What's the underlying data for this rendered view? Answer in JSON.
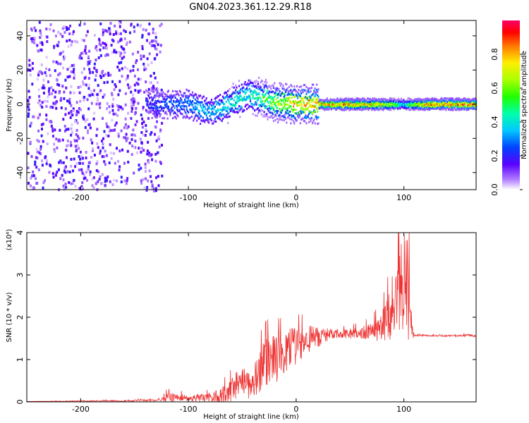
{
  "title": "GN04.2023.361.12.29.R18",
  "chart_data": [
    {
      "type": "heatmap",
      "xlabel": "Height of straight line (km)",
      "ylabel": "Frequency (Hz)",
      "xlim": [
        -250,
        167
      ],
      "ylim": [
        -50,
        49
      ],
      "xticks": [
        -200,
        -100,
        0,
        100
      ],
      "yticks": [
        -40,
        -20,
        0,
        20,
        40
      ],
      "colorbar": {
        "label": "Normalized spectral amplitude",
        "range": [
          0,
          1
        ],
        "ticks": [
          0.0,
          0.2,
          0.4,
          0.6,
          0.8
        ],
        "tick_labels": [
          "0.0",
          "0.2",
          "0.4",
          "0.6",
          "0.8"
        ]
      },
      "features": [
        {
          "region": "noise",
          "x_range": [
            -250,
            -125
          ],
          "freq_range": [
            -50,
            49
          ],
          "amplitude": [
            0.02,
            0.2
          ]
        },
        {
          "region": "ridge",
          "x": [
            -140,
            -120,
            -100,
            -90,
            -80,
            -70,
            -60,
            -50,
            -45,
            -40,
            -30,
            -20,
            -10,
            0,
            20,
            40,
            60,
            80,
            95,
            100,
            105,
            120,
            140,
            167
          ],
          "freq": [
            0,
            0,
            0,
            -3,
            -4,
            -2,
            1,
            4,
            6,
            5,
            3,
            1,
            0.5,
            0,
            0,
            0,
            0,
            0,
            0,
            0,
            0,
            0,
            0,
            0
          ],
          "amplitude": [
            0.25,
            0.3,
            0.35,
            0.4,
            0.4,
            0.45,
            0.5,
            0.5,
            0.45,
            0.55,
            0.6,
            0.7,
            0.8,
            0.9,
            0.92,
            0.92,
            0.9,
            0.85,
            0.6,
            0.4,
            0.7,
            0.95,
            0.95,
            0.95
          ]
        }
      ]
    },
    {
      "type": "line",
      "xlabel": "Height of straight line (km)",
      "ylabel": "SNR (10 * v/v)",
      "y_multiplier": "(x10⁴)",
      "xlim": [
        -250,
        167
      ],
      "ylim": [
        0,
        4
      ],
      "xticks": [
        -200,
        -100,
        0,
        100
      ],
      "yticks": [
        0,
        1,
        2,
        3,
        4
      ],
      "series": [
        {
          "color": "#ee3333",
          "x": [
            -250,
            -200,
            -150,
            -125,
            -120,
            -110,
            -100,
            -90,
            -80,
            -70,
            -60,
            -50,
            -45,
            -40,
            -35,
            -30,
            -25,
            -20,
            -15,
            -10,
            -5,
            0,
            10,
            20,
            30,
            40,
            50,
            60,
            70,
            80,
            85,
            90,
            95,
            100,
            105,
            108,
            110,
            120,
            140,
            160,
            167
          ],
          "y": [
            0.01,
            0.02,
            0.03,
            0.05,
            0.12,
            0.12,
            0.1,
            0.1,
            0.1,
            0.15,
            0.3,
            0.6,
            0.5,
            0.5,
            0.7,
            0.9,
            1.1,
            1.0,
            1.1,
            1.2,
            1.3,
            1.35,
            1.5,
            1.55,
            1.6,
            1.62,
            1.62,
            1.65,
            1.7,
            1.8,
            2.0,
            2.3,
            2.6,
            3.0,
            2.7,
            1.6,
            1.57,
            1.57,
            1.56,
            1.58,
            1.56
          ],
          "peak_noise": [
            0.0,
            0.01,
            0.02,
            0.03,
            0.12,
            0.1,
            0.08,
            0.1,
            0.12,
            0.2,
            0.3,
            0.35,
            0.4,
            0.4,
            0.5,
            0.6,
            0.55,
            0.6,
            0.55,
            0.5,
            0.5,
            0.45,
            0.35,
            0.25,
            0.15,
            0.1,
            0.12,
            0.15,
            0.2,
            0.4,
            0.6,
            0.9,
            1.1,
            1.2,
            1.2,
            0.2,
            0.02,
            0.02,
            0.02,
            0.03,
            0.02
          ]
        }
      ]
    }
  ]
}
